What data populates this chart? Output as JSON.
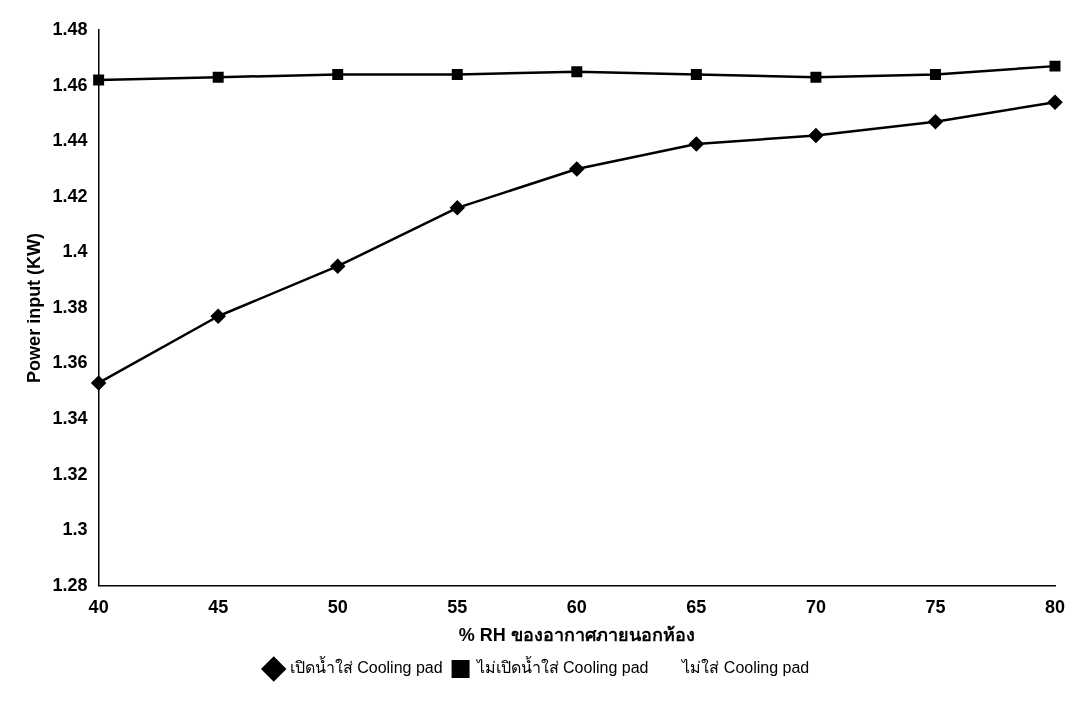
{
  "chart_data": {
    "type": "line",
    "xlabel": "% RH ของอากาศภายนอกห้อง",
    "ylabel": "Power input (KW)",
    "categories": [
      "40",
      "45",
      "50",
      "55",
      "60",
      "65",
      "70",
      "75",
      "80"
    ],
    "ylim": [
      1.28,
      1.48
    ],
    "yticks": [
      1.28,
      1.3,
      1.32,
      1.34,
      1.36,
      1.38,
      1.4,
      1.42,
      1.44,
      1.46,
      1.48
    ],
    "grid": false,
    "legend": "bottom",
    "line_style": "solid",
    "series": [
      {
        "name": "เปิดน้ำใส่ Cooling pad",
        "color": "#000000",
        "marker": "diamond",
        "values": [
          1.353,
          1.377,
          1.395,
          1.416,
          1.43,
          1.439,
          1.442,
          1.447,
          1.454
        ]
      },
      {
        "name": "ไม่เปิดน้ำใส่ Cooling pad",
        "color": "#000000",
        "marker": "square",
        "values": [
          1.462,
          1.463,
          1.464,
          1.464,
          1.465,
          1.464,
          1.463,
          1.464,
          1.467
        ]
      },
      {
        "name": "ไม่ใส่ Cooling pad",
        "values": [
          null,
          null,
          null,
          null,
          null,
          null,
          null,
          null,
          null
        ]
      }
    ]
  }
}
